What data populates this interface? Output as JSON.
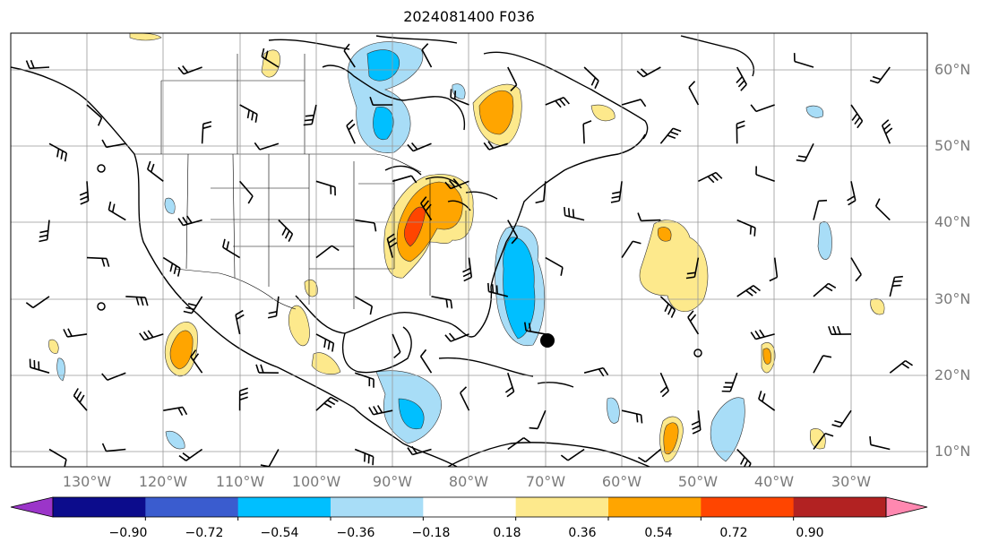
{
  "title": "2024081400 F036",
  "lat_labels": [
    "60°N",
    "50°N",
    "40°N",
    "30°N",
    "20°N",
    "10°N"
  ],
  "lon_labels": [
    "130°W",
    "120°W",
    "110°W",
    "100°W",
    "90°W",
    "80°W",
    "70°W",
    "60°W",
    "50°W",
    "40°W",
    "30°W"
  ],
  "colorbar": {
    "ticks": [
      "−0.90",
      "−0.72",
      "−0.54",
      "−0.36",
      "−0.18",
      "0.18",
      "0.36",
      "0.54",
      "0.72",
      "0.90"
    ],
    "colors": [
      "#9b35c9",
      "#0c0c8c",
      "#3a5ccf",
      "#00bfff",
      "#a8ddf7",
      "#ffffff",
      "#fde98c",
      "#ffa500",
      "#ff4500",
      "#b22222",
      "#ff88b0"
    ]
  },
  "map": {
    "projection": "equirectangular",
    "extent_lon": [
      -137,
      -17
    ],
    "extent_lat": [
      8,
      65
    ],
    "marker": {
      "symbol": "filled circle",
      "lon": -70,
      "lat": 24.5
    }
  }
}
